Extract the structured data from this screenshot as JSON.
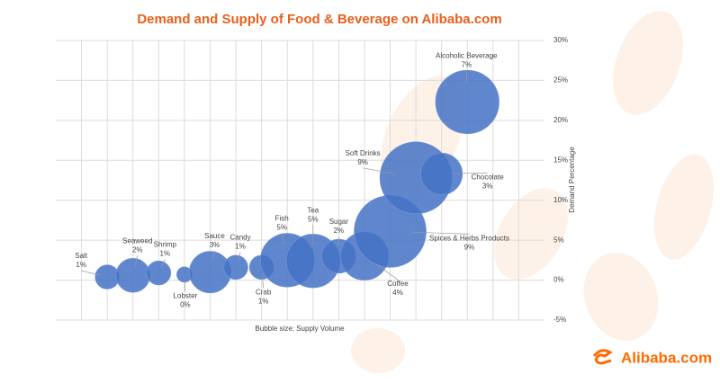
{
  "chart_data": {
    "type": "bubble",
    "title": "Demand and Supply of Food & Beverage on Alibaba.com",
    "x_label": "Bubble size: Supply Volume",
    "y_label": "Demand Percentage",
    "labels": [
      "Salt",
      "Seaweed",
      "Shrimp",
      "Lobster",
      "Sauce",
      "Candy",
      "Crab",
      "Fish",
      "Tea",
      "Sugar",
      "Coffee",
      "Spices & Herbs Products",
      "Soft Drinks",
      "Chocolate",
      "Alcoholic Beverage"
    ],
    "x": [
      1,
      2,
      3,
      4,
      5,
      6,
      7,
      8,
      9,
      10,
      11,
      12,
      13,
      14,
      15
    ],
    "values": [
      0.4,
      0.6,
      0.9,
      0.7,
      1.0,
      1.6,
      1.6,
      2.5,
      2.4,
      3.0,
      3.0,
      6.1,
      12.8,
      13.3,
      22.3
    ],
    "sizes": [
      1,
      2,
      1,
      0.4,
      3,
      1,
      1,
      5,
      5,
      2,
      4,
      9,
      9,
      3,
      7
    ],
    "size_labels": [
      "1%",
      "2%",
      "1%",
      "0%",
      "3%",
      "1%",
      "1%",
      "5%",
      "5%",
      "2%",
      "4%",
      "9%",
      "9%",
      "3%",
      "7%"
    ],
    "color": "#4472c4",
    "xlim": [
      -1,
      18
    ],
    "xticks": [
      0,
      1,
      2,
      3,
      4,
      5,
      6,
      7,
      8,
      9,
      10,
      11,
      12,
      13,
      14,
      15,
      16,
      17
    ],
    "ylim": [
      -5,
      30
    ],
    "yticks": [
      {
        "value": -5,
        "label": "-5%"
      },
      {
        "value": 0,
        "label": "0%"
      },
      {
        "value": 5,
        "label": "5%"
      },
      {
        "value": 10,
        "label": "10%"
      },
      {
        "value": 15,
        "label": "15%"
      },
      {
        "value": 20,
        "label": "20%"
      },
      {
        "value": 25,
        "label": "25%"
      },
      {
        "value": 30,
        "label": "30%"
      }
    ],
    "grid": true,
    "logo": "Alibaba.com"
  }
}
